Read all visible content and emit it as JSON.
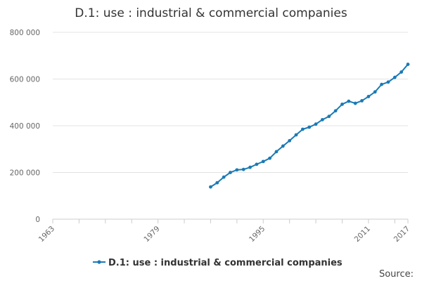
{
  "chart_data": {
    "type": "line",
    "title": "D.1: use : industrial & commercial companies",
    "xlabel": "",
    "ylabel": "",
    "xlim": [
      1963,
      2017
    ],
    "ylim": [
      0,
      800000
    ],
    "y_ticks": [
      0,
      200000,
      400000,
      600000,
      800000
    ],
    "y_tick_labels": [
      "0",
      "200 000",
      "400 000",
      "600 000",
      "800 000"
    ],
    "x_ticks": [
      1963,
      1979,
      1995,
      2011,
      2017
    ],
    "x_tick_labels": [
      "1963",
      "1979",
      "1995",
      "2011",
      "2017"
    ],
    "grid": "horizontal",
    "legend_position": "bottom",
    "series": [
      {
        "name": "D.1: use : industrial & commercial companies",
        "color": "#1a7ab5",
        "x": [
          1987,
          1988,
          1989,
          1990,
          1991,
          1992,
          1993,
          1994,
          1995,
          1996,
          1997,
          1998,
          1999,
          2000,
          2001,
          2002,
          2003,
          2004,
          2005,
          2006,
          2007,
          2008,
          2009,
          2010,
          2011,
          2012,
          2013,
          2014,
          2015,
          2016,
          2017
        ],
        "values": [
          138000,
          156000,
          180000,
          200000,
          211000,
          213000,
          222000,
          235000,
          247000,
          261000,
          289000,
          313000,
          336000,
          361000,
          385000,
          394000,
          407000,
          426000,
          440000,
          464000,
          492000,
          505000,
          496000,
          507000,
          525000,
          545000,
          577000,
          587000,
          607000,
          630000,
          663000
        ]
      }
    ]
  },
  "legend": {
    "label": "D.1: use : industrial & commercial companies"
  },
  "footer": {
    "source": "Source:"
  }
}
